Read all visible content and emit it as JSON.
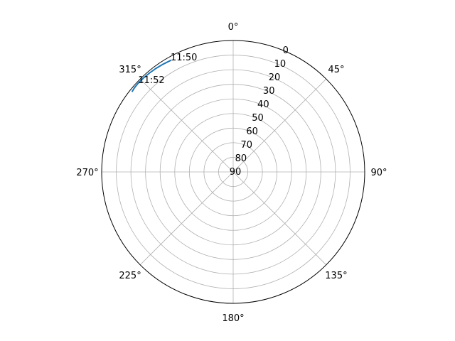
{
  "chart_data": {
    "type": "polar-line",
    "theta_direction": "clockwise",
    "theta_zero": "top",
    "r_axis": {
      "inverted": true,
      "range": [
        0,
        90
      ],
      "ticks": [
        0,
        10,
        20,
        30,
        40,
        50,
        60,
        70,
        80,
        90
      ],
      "tick_labels": [
        "0",
        "10",
        "20",
        "30",
        "40",
        "50",
        "60",
        "70",
        "80",
        "90"
      ]
    },
    "theta_axis": {
      "ticks_deg": [
        0,
        45,
        90,
        135,
        180,
        225,
        270,
        315
      ],
      "tick_labels": [
        "0°",
        "45°",
        "90°",
        "135°",
        "180°",
        "225°",
        "270°",
        "315°"
      ]
    },
    "grid": true,
    "series": [
      {
        "color": "#1f77b4",
        "points": [
          {
            "theta_deg": 330.7,
            "r": 2.5
          },
          {
            "theta_deg": 327.0,
            "r": 2.0
          },
          {
            "theta_deg": 323.4,
            "r": 1.6
          },
          {
            "theta_deg": 319.8,
            "r": 1.3
          },
          {
            "theta_deg": 316.3,
            "r": 1.1
          },
          {
            "theta_deg": 313.0,
            "r": 1.0
          },
          {
            "theta_deg": 310.5,
            "r": 1.2
          },
          {
            "theta_deg": 308.7,
            "r": 1.6
          }
        ]
      }
    ],
    "annotations": [
      {
        "text": "11:50",
        "theta_deg": 330.7,
        "r": 2.5
      },
      {
        "text": "11:52",
        "theta_deg": 313.0,
        "r": 1.0
      }
    ]
  }
}
